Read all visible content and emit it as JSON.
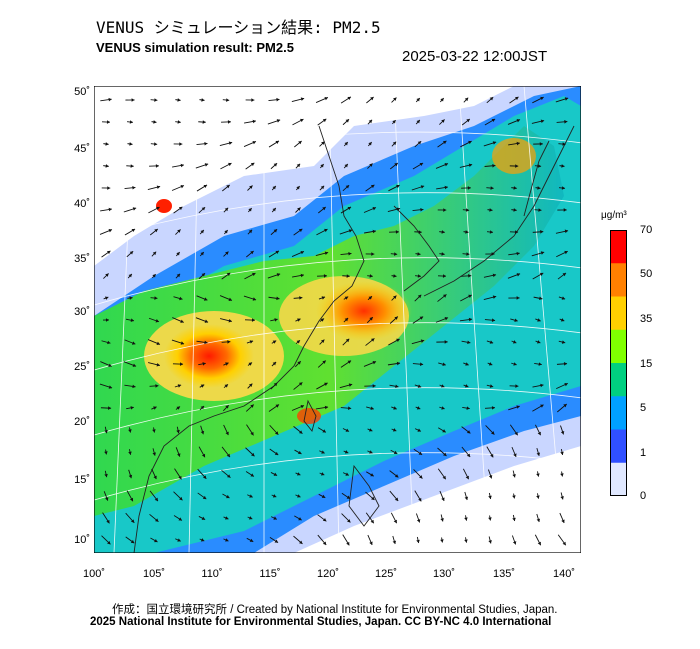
{
  "header": {
    "title_jp": "VENUS シミュレーション結果: PM2.5",
    "title_en": "VENUS simulation result: PM2.5",
    "timestamp": "2025-03-22 12:00JST"
  },
  "map": {
    "lat_ticks": [
      "50˚",
      "45˚",
      "40˚",
      "35˚",
      "30˚",
      "25˚",
      "20˚",
      "15˚",
      "10˚"
    ],
    "lon_ticks": [
      "100˚",
      "105˚",
      "110˚",
      "115˚",
      "120˚",
      "125˚",
      "130˚",
      "135˚",
      "140˚"
    ]
  },
  "colorbar": {
    "unit": "μg/m³",
    "ticks": [
      "70",
      "50",
      "35",
      "15",
      "5",
      "1",
      "0"
    ],
    "colors": [
      "#ff0000",
      "#ff8000",
      "#ffd000",
      "#80ff00",
      "#00d080",
      "#00a0ff",
      "#3050ff",
      "#e0e8ff"
    ]
  },
  "credits": {
    "line1": "作成：国立環境研究所 / Created by National Institute for Environmental Studies, Japan.",
    "line2": "2025 National Institute for Environmental Studies, Japan. CC BY-NC 4.0 International"
  }
}
